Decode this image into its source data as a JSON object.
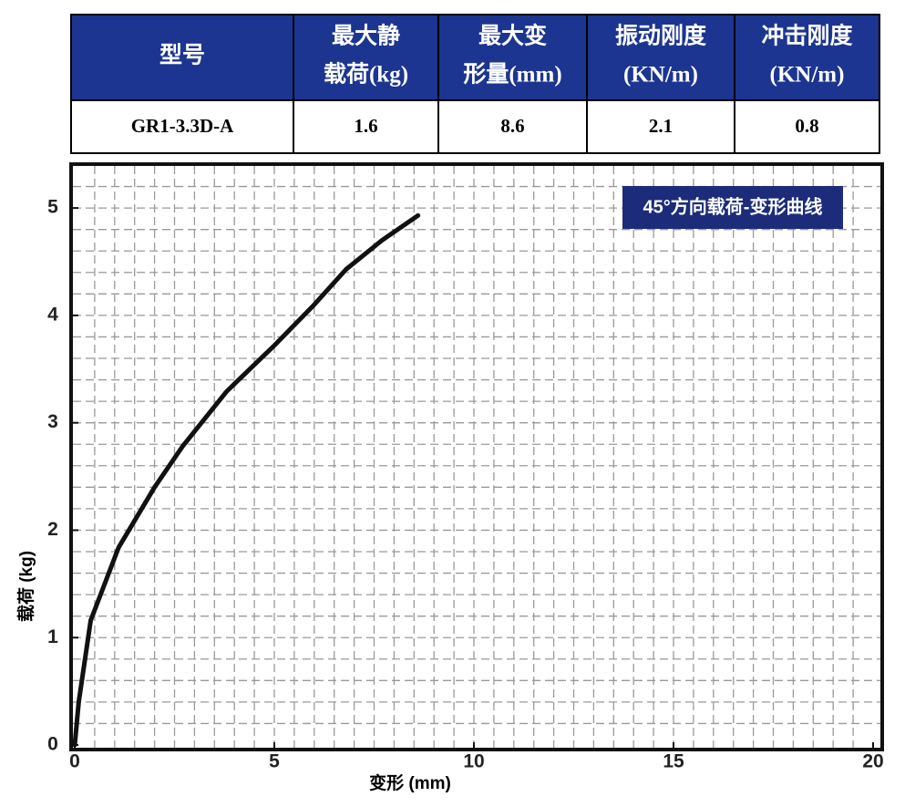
{
  "table": {
    "header": [
      [
        "型号"
      ],
      [
        "最大静",
        "载荷(kg)"
      ],
      [
        "最大变",
        "形量(mm)"
      ],
      [
        "振动刚度",
        "(KN/m)"
      ],
      [
        "冲击刚度",
        "(KN/m)"
      ]
    ],
    "rows": [
      [
        "GR1-3.3D-A",
        "1.6",
        "8.6",
        "2.1",
        "0.8"
      ]
    ]
  },
  "chart_data": {
    "type": "line",
    "title": "45°方向载荷-变形曲线",
    "x_label": "变形 (mm)",
    "y_label": "载荷 (kg)",
    "x": [
      0,
      0.1,
      0.4,
      1.1,
      2,
      2.7,
      3.8,
      5,
      6,
      6.8,
      7.7,
      8.6
    ],
    "values": [
      0,
      0.4,
      1.16,
      1.84,
      2.4,
      2.78,
      3.29,
      3.72,
      4.1,
      4.43,
      4.7,
      4.93
    ],
    "color": "#111111",
    "xlim": [
      0,
      20
    ],
    "ylim": [
      0,
      5.4
    ],
    "xticks": [
      0,
      5,
      10,
      15,
      20
    ],
    "yticks": [
      0,
      1,
      2,
      3,
      4,
      5
    ],
    "grid": true
  }
}
